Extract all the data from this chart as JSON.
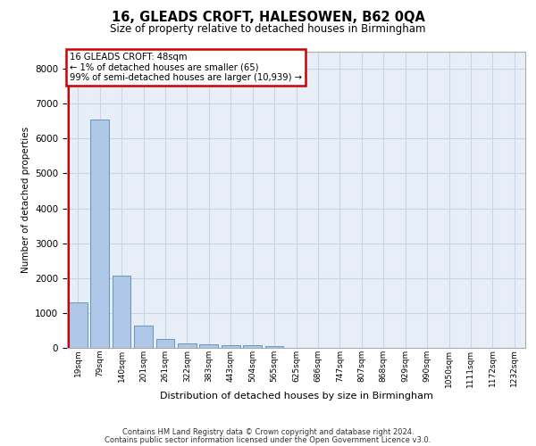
{
  "title1": "16, GLEADS CROFT, HALESOWEN, B62 0QA",
  "title2": "Size of property relative to detached houses in Birmingham",
  "xlabel": "Distribution of detached houses by size in Birmingham",
  "ylabel": "Number of detached properties",
  "categories": [
    "19sqm",
    "79sqm",
    "140sqm",
    "201sqm",
    "261sqm",
    "322sqm",
    "383sqm",
    "443sqm",
    "504sqm",
    "565sqm",
    "625sqm",
    "686sqm",
    "747sqm",
    "807sqm",
    "868sqm",
    "929sqm",
    "990sqm",
    "1050sqm",
    "1111sqm",
    "1172sqm",
    "1232sqm"
  ],
  "values": [
    1300,
    6550,
    2080,
    650,
    265,
    135,
    100,
    75,
    65,
    60,
    0,
    0,
    0,
    0,
    0,
    0,
    0,
    0,
    0,
    0,
    0
  ],
  "ylim_max": 8500,
  "yticks": [
    0,
    1000,
    2000,
    3000,
    4000,
    5000,
    6000,
    7000,
    8000
  ],
  "bar_color": "#aec6e8",
  "bar_edge_color": "#6699bb",
  "grid_color": "#c8d4ea",
  "bg_color": "#e8eef8",
  "ann_line1": "16 GLEADS CROFT: 48sqm",
  "ann_line2": "← 1% of detached houses are smaller (65)",
  "ann_line3": "99% of semi-detached houses are larger (10,939) →",
  "ann_edge_color": "#cc0000",
  "footer1": "Contains HM Land Registry data © Crown copyright and database right 2024.",
  "footer2": "Contains public sector information licensed under the Open Government Licence v3.0."
}
